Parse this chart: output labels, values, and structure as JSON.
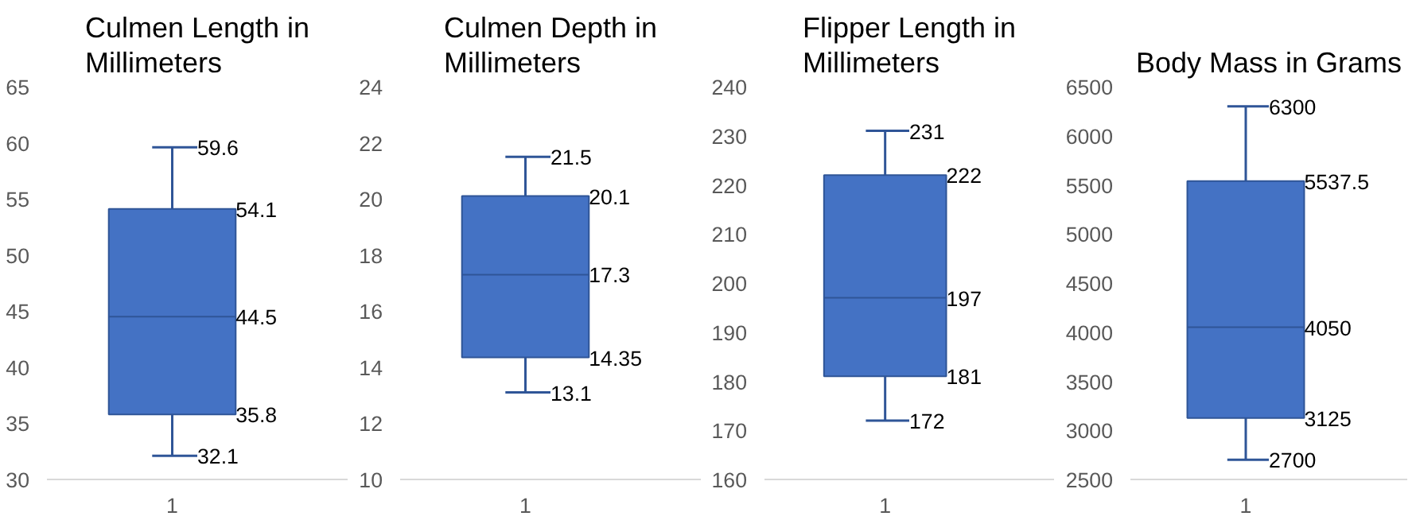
{
  "chart_data": [
    {
      "type": "box",
      "title": "Culmen Length in Millimeters",
      "categories": [
        "1"
      ],
      "color": "#4472c4",
      "ylim": [
        30,
        65
      ],
      "yticks": [
        30,
        35,
        40,
        45,
        50,
        55,
        60,
        65
      ],
      "boxes": [
        {
          "low": 32.1,
          "q1": 35.8,
          "median": 44.5,
          "q3": 54.1,
          "high": 59.6
        }
      ],
      "annotations": [
        {
          "text": "59.6",
          "x": "1",
          "y": 59.6
        },
        {
          "text": "54.1",
          "x": "1",
          "y": 54.1
        },
        {
          "text": "44.5",
          "x": "1",
          "y": 44.5
        },
        {
          "text": "35.8",
          "x": "1",
          "y": 35.8
        },
        {
          "text": "32.1",
          "x": "1",
          "y": 32.1
        }
      ]
    },
    {
      "type": "box",
      "title": "Culmen Depth in Millimeters",
      "categories": [
        "1"
      ],
      "color": "#4472c4",
      "ylim": [
        10,
        24
      ],
      "yticks": [
        10,
        12,
        14,
        16,
        18,
        20,
        22,
        24
      ],
      "boxes": [
        {
          "low": 13.1,
          "q1": 14.35,
          "median": 17.3,
          "q3": 20.1,
          "high": 21.5
        }
      ],
      "annotations": [
        {
          "text": "21.5",
          "x": "1",
          "y": 21.5
        },
        {
          "text": "20.1",
          "x": "1",
          "y": 20.1
        },
        {
          "text": "17.3",
          "x": "1",
          "y": 17.3
        },
        {
          "text": "14.35",
          "x": "1",
          "y": 14.35
        },
        {
          "text": "13.1",
          "x": "1",
          "y": 13.1
        }
      ]
    },
    {
      "type": "box",
      "title": "Flipper Length in Millimeters",
      "categories": [
        "1"
      ],
      "color": "#4472c4",
      "ylim": [
        160,
        240
      ],
      "yticks": [
        160,
        170,
        180,
        190,
        200,
        210,
        220,
        230,
        240
      ],
      "boxes": [
        {
          "low": 172,
          "q1": 181,
          "median": 197,
          "q3": 222,
          "high": 231
        }
      ],
      "annotations": [
        {
          "text": "231",
          "x": "1",
          "y": 231
        },
        {
          "text": "222",
          "x": "1",
          "y": 222
        },
        {
          "text": "197",
          "x": "1",
          "y": 197
        },
        {
          "text": "181",
          "x": "1",
          "y": 181
        },
        {
          "text": "172",
          "x": "1",
          "y": 172
        }
      ]
    },
    {
      "type": "box",
      "title": "Body Mass in Grams",
      "categories": [
        "1"
      ],
      "color": "#4472c4",
      "ylim": [
        2500,
        6500
      ],
      "yticks": [
        2500,
        3000,
        3500,
        4000,
        4500,
        5000,
        5500,
        6000,
        6500
      ],
      "boxes": [
        {
          "low": 2700,
          "q1": 3125,
          "median": 4050,
          "q3": 5537.5,
          "high": 6300
        }
      ],
      "annotations": [
        {
          "text": "6300",
          "x": "1",
          "y": 6300
        },
        {
          "text": "5537.5",
          "x": "1",
          "y": 5537.5
        },
        {
          "text": "4050",
          "x": "1",
          "y": 4050
        },
        {
          "text": "3125",
          "x": "1",
          "y": 3125
        },
        {
          "text": "2700",
          "x": "1",
          "y": 2700
        }
      ]
    }
  ]
}
